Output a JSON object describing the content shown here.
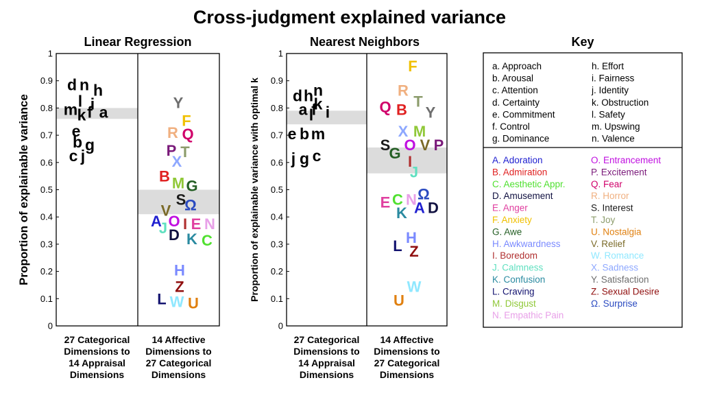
{
  "title": "Cross-judgment explained variance",
  "chart_data": [
    {
      "type": "scatter",
      "title": "Linear Regression",
      "ylabel": "Proportion of explainable variance",
      "ylim": [
        0,
        1
      ],
      "yticks": [
        "0",
        "0.1",
        "0.2",
        "0.3",
        "0.4",
        "0.5",
        "0.6",
        "0.7",
        "0.8",
        "0.9",
        "1"
      ],
      "columns": [
        {
          "caption": [
            "27 Categorical",
            "Dimensions to",
            "14 Appraisal",
            "Dimensions"
          ],
          "band": [
            0.76,
            0.8
          ],
          "points": [
            {
              "label": "d",
              "value": 0.885,
              "color": "#000000",
              "dx": -30
            },
            {
              "label": "n",
              "value": 0.885,
              "color": "#000000",
              "dx": -12
            },
            {
              "label": "h",
              "value": 0.865,
              "color": "#000000",
              "dx": 8
            },
            {
              "label": "l",
              "value": 0.825,
              "color": "#000000",
              "dx": -18
            },
            {
              "label": "i",
              "value": 0.815,
              "color": "#000000",
              "dx": 0
            },
            {
              "label": "m",
              "value": 0.795,
              "color": "#000000",
              "dx": -32
            },
            {
              "label": "f",
              "value": 0.785,
              "color": "#000000",
              "dx": -4
            },
            {
              "label": "a",
              "value": 0.785,
              "color": "#000000",
              "dx": 16
            },
            {
              "label": "k",
              "value": 0.775,
              "color": "#000000",
              "dx": -16
            },
            {
              "label": "e",
              "value": 0.715,
              "color": "#000000",
              "dx": -24
            },
            {
              "label": "b",
              "value": 0.675,
              "color": "#000000",
              "dx": -22
            },
            {
              "label": "g",
              "value": 0.665,
              "color": "#000000",
              "dx": -4
            },
            {
              "label": "c",
              "value": 0.625,
              "color": "#000000",
              "dx": -28
            },
            {
              "label": "j",
              "value": 0.625,
              "color": "#000000",
              "dx": -14
            }
          ]
        },
        {
          "caption": [
            "14 Affective",
            "Dimensions to",
            "27 Categorical",
            "Dimensions"
          ],
          "band": [
            0.41,
            0.5
          ],
          "points": [
            {
              "label": "Y",
              "value": 0.82,
              "color": "#6e6e6e",
              "dx": -2
            },
            {
              "label": "F",
              "value": 0.755,
              "color": "#f0c000",
              "dx": 10
            },
            {
              "label": "R",
              "value": 0.71,
              "color": "#f0b080",
              "dx": -10
            },
            {
              "label": "Q",
              "value": 0.705,
              "color": "#d0006a",
              "dx": 12
            },
            {
              "label": "P",
              "value": 0.645,
              "color": "#7a1a7a",
              "dx": -12
            },
            {
              "label": "T",
              "value": 0.64,
              "color": "#8c9c6c",
              "dx": 8
            },
            {
              "label": "X",
              "value": 0.605,
              "color": "#8ea8ff",
              "dx": -4
            },
            {
              "label": "B",
              "value": 0.55,
              "color": "#e02020",
              "dx": -22
            },
            {
              "label": "M",
              "value": 0.525,
              "color": "#90c838",
              "dx": -2
            },
            {
              "label": "G",
              "value": 0.515,
              "color": "#245e24",
              "dx": 18
            },
            {
              "label": "S",
              "value": 0.465,
              "color": "#1a1a1a",
              "dx": 2
            },
            {
              "label": "Ω",
              "value": 0.445,
              "color": "#2a4ac0",
              "dx": 16
            },
            {
              "label": "V",
              "value": 0.425,
              "color": "#7a6a28",
              "dx": -20
            },
            {
              "label": "A",
              "value": 0.385,
              "color": "#2020d0",
              "dx": -34
            },
            {
              "label": "O",
              "value": 0.385,
              "color": "#c010e0",
              "dx": -8
            },
            {
              "label": "I",
              "value": 0.375,
              "color": "#b03030",
              "dx": 8
            },
            {
              "label": "E",
              "value": 0.375,
              "color": "#e040a0",
              "dx": 24
            },
            {
              "label": "N",
              "value": 0.375,
              "color": "#e8a0e8",
              "dx": 44
            },
            {
              "label": "J",
              "value": 0.36,
              "color": "#60e0c0",
              "dx": -24
            },
            {
              "label": "D",
              "value": 0.335,
              "color": "#101040",
              "dx": -8
            },
            {
              "label": "K",
              "value": 0.32,
              "color": "#2a8aa0",
              "dx": 18
            },
            {
              "label": "C",
              "value": 0.315,
              "color": "#50e030",
              "dx": 40
            },
            {
              "label": "H",
              "value": 0.205,
              "color": "#7a8aff",
              "dx": 0
            },
            {
              "label": "Z",
              "value": 0.145,
              "color": "#901010",
              "dx": 0
            },
            {
              "label": "L",
              "value": 0.1,
              "color": "#141470",
              "dx": -26
            },
            {
              "label": "W",
              "value": 0.09,
              "color": "#90e8ff",
              "dx": -4
            },
            {
              "label": "U",
              "value": 0.085,
              "color": "#e08010",
              "dx": 20
            }
          ]
        }
      ]
    },
    {
      "type": "scatter",
      "title": "Nearest Neighbors",
      "ylabel": "Proportion of explainable variance with optimal k",
      "ylim": [
        0,
        1
      ],
      "yticks": [
        "0",
        "0.1",
        "0.2",
        "0.3",
        "0.4",
        "0.5",
        "0.6",
        "0.7",
        "0.8",
        "0.9",
        "1"
      ],
      "columns": [
        {
          "caption": [
            "27 Categorical",
            "Dimensions to",
            "14 Appraisal",
            "Dimensions"
          ],
          "band": [
            0.74,
            0.79
          ],
          "points": [
            {
              "label": "n",
              "value": 0.865,
              "color": "#000000",
              "dx": -6
            },
            {
              "label": "d",
              "value": 0.845,
              "color": "#000000",
              "dx": -36
            },
            {
              "label": "h",
              "value": 0.845,
              "color": "#000000",
              "dx": -20
            },
            {
              "label": "k",
              "value": 0.815,
              "color": "#000000",
              "dx": -6
            },
            {
              "label": "a",
              "value": 0.795,
              "color": "#000000",
              "dx": -28
            },
            {
              "label": "f",
              "value": 0.795,
              "color": "#000000",
              "dx": -12
            },
            {
              "label": "i",
              "value": 0.785,
              "color": "#000000",
              "dx": 8
            },
            {
              "label": "l",
              "value": 0.775,
              "color": "#000000",
              "dx": -16
            },
            {
              "label": "e",
              "value": 0.705,
              "color": "#000000",
              "dx": -44
            },
            {
              "label": "b",
              "value": 0.705,
              "color": "#000000",
              "dx": -26
            },
            {
              "label": "m",
              "value": 0.705,
              "color": "#000000",
              "dx": -6
            },
            {
              "label": "j",
              "value": 0.615,
              "color": "#000000",
              "dx": -42
            },
            {
              "label": "g",
              "value": 0.615,
              "color": "#000000",
              "dx": -26
            },
            {
              "label": "c",
              "value": 0.625,
              "color": "#000000",
              "dx": -8
            }
          ]
        },
        {
          "caption": [
            "14 Affective",
            "Dimensions to",
            "27 Categorical",
            "Dimensions"
          ],
          "band": [
            0.56,
            0.655
          ],
          "points": [
            {
              "label": "F",
              "value": 0.955,
              "color": "#f0c000",
              "dx": 2
            },
            {
              "label": "R",
              "value": 0.865,
              "color": "#f0b080",
              "dx": -12
            },
            {
              "label": "T",
              "value": 0.825,
              "color": "#8c9c6c",
              "dx": 10
            },
            {
              "label": "Q",
              "value": 0.805,
              "color": "#d0006a",
              "dx": -38
            },
            {
              "label": "B",
              "value": 0.795,
              "color": "#e02020",
              "dx": -14
            },
            {
              "label": "Y",
              "value": 0.785,
              "color": "#6e6e6e",
              "dx": 28
            },
            {
              "label": "X",
              "value": 0.715,
              "color": "#8ea8ff",
              "dx": -12
            },
            {
              "label": "M",
              "value": 0.715,
              "color": "#90c838",
              "dx": 12
            },
            {
              "label": "S",
              "value": 0.665,
              "color": "#1a1a1a",
              "dx": -38
            },
            {
              "label": "O",
              "value": 0.665,
              "color": "#c010e0",
              "dx": -2
            },
            {
              "label": "V",
              "value": 0.665,
              "color": "#7a6a28",
              "dx": 20
            },
            {
              "label": "P",
              "value": 0.665,
              "color": "#7a1a7a",
              "dx": 40
            },
            {
              "label": "G",
              "value": 0.635,
              "color": "#245e24",
              "dx": -24
            },
            {
              "label": "I",
              "value": 0.605,
              "color": "#b03030",
              "dx": -2
            },
            {
              "label": "J",
              "value": 0.565,
              "color": "#60e0c0",
              "dx": 4
            },
            {
              "label": "Ω",
              "value": 0.485,
              "color": "#2a4ac0",
              "dx": 18
            },
            {
              "label": "C",
              "value": 0.465,
              "color": "#50e030",
              "dx": -20
            },
            {
              "label": "N",
              "value": 0.465,
              "color": "#e8a0e8",
              "dx": 0
            },
            {
              "label": "E",
              "value": 0.455,
              "color": "#e040a0",
              "dx": -38
            },
            {
              "label": "A",
              "value": 0.435,
              "color": "#2020d0",
              "dx": 12
            },
            {
              "label": "D",
              "value": 0.435,
              "color": "#101040",
              "dx": 32
            },
            {
              "label": "K",
              "value": 0.415,
              "color": "#2a8aa0",
              "dx": -14
            },
            {
              "label": "H",
              "value": 0.325,
              "color": "#7a8aff",
              "dx": 0
            },
            {
              "label": "L",
              "value": 0.295,
              "color": "#141470",
              "dx": -20
            },
            {
              "label": "Z",
              "value": 0.275,
              "color": "#901010",
              "dx": 4
            },
            {
              "label": "W",
              "value": 0.145,
              "color": "#90e8ff",
              "dx": 4
            },
            {
              "label": "U",
              "value": 0.095,
              "color": "#e08010",
              "dx": -18
            }
          ]
        }
      ]
    }
  ],
  "key": {
    "title": "Key",
    "appraisal": [
      {
        "text": "a.  Approach"
      },
      {
        "text": "b.  Arousal"
      },
      {
        "text": "c.  Attention"
      },
      {
        "text": "d.  Certainty"
      },
      {
        "text": "e.  Commitment"
      },
      {
        "text": "f.   Control"
      },
      {
        "text": "g.  Dominance"
      },
      {
        "text": "h.  Effort"
      },
      {
        "text": "i.   Fairness"
      },
      {
        "text": "j.   Identity"
      },
      {
        "text": "k.  Obstruction"
      },
      {
        "text": "l.   Safety"
      },
      {
        "text": "m. Upswing"
      },
      {
        "text": "n.  Valence"
      }
    ],
    "categories": [
      {
        "text": "A.  Adoration",
        "color": "#2020d0"
      },
      {
        "text": "B.  Admiration",
        "color": "#e02020"
      },
      {
        "text": "C.  Aesthetic Appr.",
        "color": "#50e030"
      },
      {
        "text": "D.  Amusement",
        "color": "#101040"
      },
      {
        "text": "E.  Anger",
        "color": "#e040a0"
      },
      {
        "text": "F.  Anxiety",
        "color": "#f0c000"
      },
      {
        "text": "G.  Awe",
        "color": "#245e24"
      },
      {
        "text": "H.  Awkwardness",
        "color": "#7a8aff"
      },
      {
        "text": "I.   Boredom",
        "color": "#b03030"
      },
      {
        "text": "J.   Calmness",
        "color": "#60e0c0"
      },
      {
        "text": "K.  Confusion",
        "color": "#2a8aa0"
      },
      {
        "text": "L.  Craving",
        "color": "#141470"
      },
      {
        "text": "M.  Disgust",
        "color": "#90c838"
      },
      {
        "text": "N.  Empathic Pain",
        "color": "#e8a0e8"
      },
      {
        "text": "O.  Entrancement",
        "color": "#c010e0"
      },
      {
        "text": "P.  Excitement",
        "color": "#7a1a7a"
      },
      {
        "text": "Q.  Fear",
        "color": "#d0006a"
      },
      {
        "text": "R.  Horror",
        "color": "#f0b080"
      },
      {
        "text": "S.  Interest",
        "color": "#1a1a1a"
      },
      {
        "text": "T.  Joy",
        "color": "#8c9c6c"
      },
      {
        "text": "U.  Nostalgia",
        "color": "#e08010"
      },
      {
        "text": "V.  Relief",
        "color": "#7a6a28"
      },
      {
        "text": "W. Romance",
        "color": "#90e8ff"
      },
      {
        "text": "X.  Sadness",
        "color": "#8ea8ff"
      },
      {
        "text": "Y.  Satisfaction",
        "color": "#6e6e6e"
      },
      {
        "text": "Z.  Sexual Desire",
        "color": "#901010"
      },
      {
        "text": "Ω.  Surprise",
        "color": "#2a4ac0"
      }
    ]
  }
}
